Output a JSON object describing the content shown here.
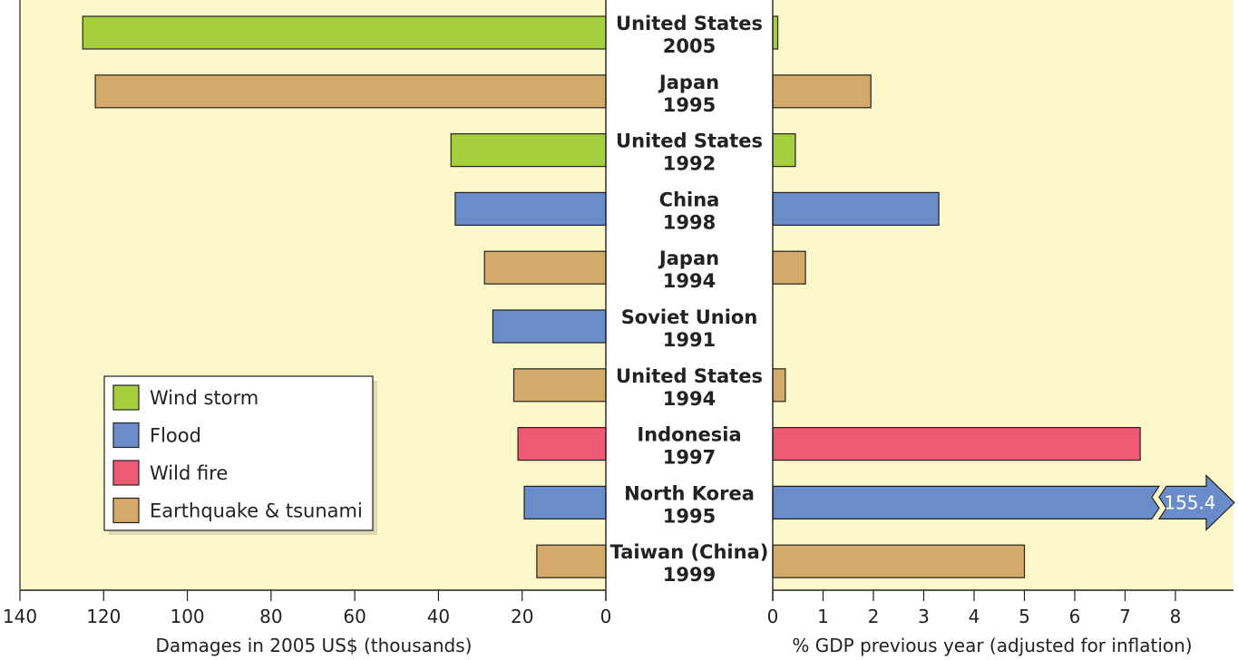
{
  "chart_data": {
    "type": "bar",
    "layout": "butterfly",
    "background_color": "#fdf7c9",
    "categories": [
      {
        "country": "United States",
        "year": "2005",
        "hazard": "Wind storm"
      },
      {
        "country": "Japan",
        "year": "1995",
        "hazard": "Earthquake & tsunami"
      },
      {
        "country": "United States",
        "year": "1992",
        "hazard": "Wind storm"
      },
      {
        "country": "China",
        "year": "1998",
        "hazard": "Flood"
      },
      {
        "country": "Japan",
        "year": "1994",
        "hazard": "Earthquake & tsunami"
      },
      {
        "country": "Soviet Union",
        "year": "1991",
        "hazard": "Flood"
      },
      {
        "country": "United States",
        "year": "1994",
        "hazard": "Earthquake & tsunami"
      },
      {
        "country": "Indonesia",
        "year": "1997",
        "hazard": "Wild fire"
      },
      {
        "country": "North Korea",
        "year": "1995",
        "hazard": "Flood"
      },
      {
        "country": "Taiwan (China)",
        "year": "1999",
        "hazard": "Earthquake & tsunami"
      }
    ],
    "left_panel": {
      "xlabel": "Damages in 2005 US$ (thousands)",
      "xlim": [
        0,
        140
      ],
      "direction": "reversed",
      "ticks": [
        140,
        120,
        100,
        80,
        60,
        40,
        20,
        0
      ],
      "values": [
        125,
        122,
        37,
        36,
        29,
        27,
        22,
        21,
        19.5,
        16.5
      ]
    },
    "right_panel": {
      "xlabel": "% GDP previous year (adjusted for inflation)",
      "xlim": [
        0,
        9.1
      ],
      "ticks": [
        0,
        1,
        2,
        3,
        4,
        5,
        6,
        7,
        8
      ],
      "values": [
        0.1,
        1.95,
        0.45,
        3.3,
        0.65,
        null,
        0.25,
        7.3,
        155.4,
        5.0
      ],
      "broken_bar_label": "155.4"
    },
    "legend": {
      "position": "lower-left",
      "entries": [
        {
          "name": "Wind storm",
          "color": "#a6cf3e"
        },
        {
          "name": "Flood",
          "color": "#6b8cca"
        },
        {
          "name": "Wild fire",
          "color": "#ee5a73"
        },
        {
          "name": "Earthquake & tsunami",
          "color": "#d4aa6a"
        }
      ]
    },
    "grid": false
  }
}
